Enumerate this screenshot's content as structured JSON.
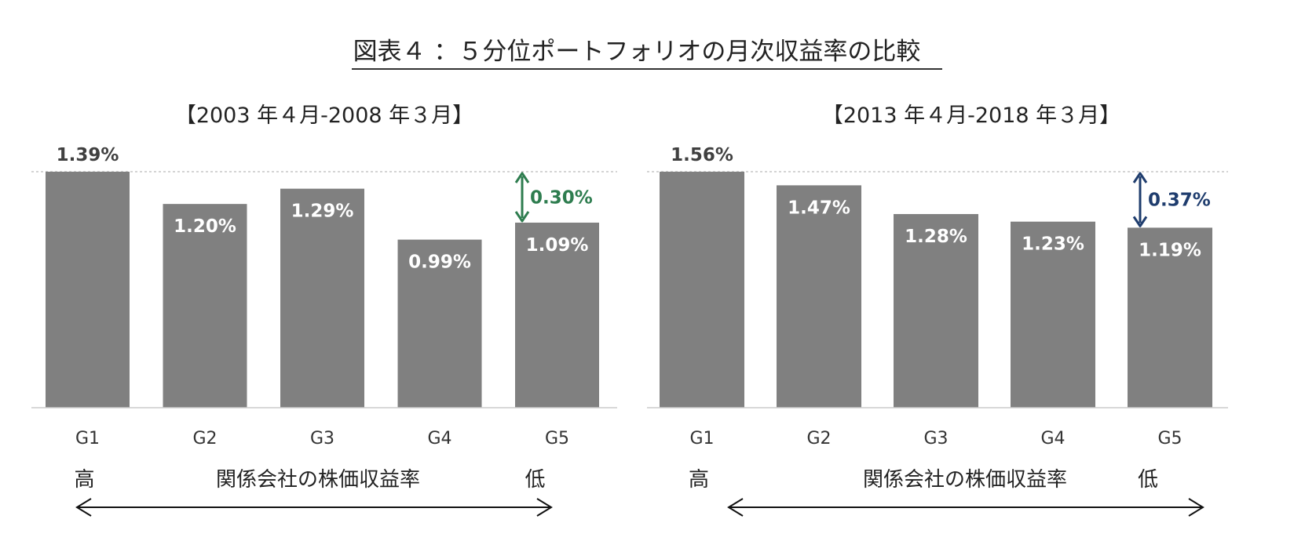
{
  "title": "図表４ ：５分位ポートフォリオの月次収益率の比較",
  "chart_data": [
    {
      "type": "bar",
      "title": "【2003 年４月-2008 年３月】",
      "categories": [
        "G1",
        "G2",
        "G3",
        "G4",
        "G5"
      ],
      "values": [
        1.39,
        1.2,
        1.29,
        0.99,
        1.09
      ],
      "value_labels": [
        "1.39%",
        "1.20%",
        "1.29%",
        "0.99%",
        "1.09%"
      ],
      "ylim": [
        0,
        1.39
      ],
      "grid": false,
      "bar_color": "#808080",
      "spread": {
        "label": "0.30%",
        "from": "G1",
        "to": "G5",
        "color": "#2e7d4f"
      },
      "axis_note": {
        "high": "高",
        "low": "低",
        "center": "関係会社の株価収益率"
      }
    },
    {
      "type": "bar",
      "title": "【2013 年４月-2018 年３月】",
      "categories": [
        "G1",
        "G2",
        "G3",
        "G4",
        "G5"
      ],
      "values": [
        1.56,
        1.47,
        1.28,
        1.23,
        1.19
      ],
      "value_labels": [
        "1.56%",
        "1.47%",
        "1.28%",
        "1.23%",
        "1.19%"
      ],
      "ylim": [
        0,
        1.56
      ],
      "grid": false,
      "bar_color": "#808080",
      "spread": {
        "label": "0.37%",
        "from": "G1",
        "to": "G5",
        "color": "#1f3d6e"
      },
      "axis_note": {
        "high": "高",
        "low": "低",
        "center": "関係会社の株価収益率"
      }
    }
  ]
}
